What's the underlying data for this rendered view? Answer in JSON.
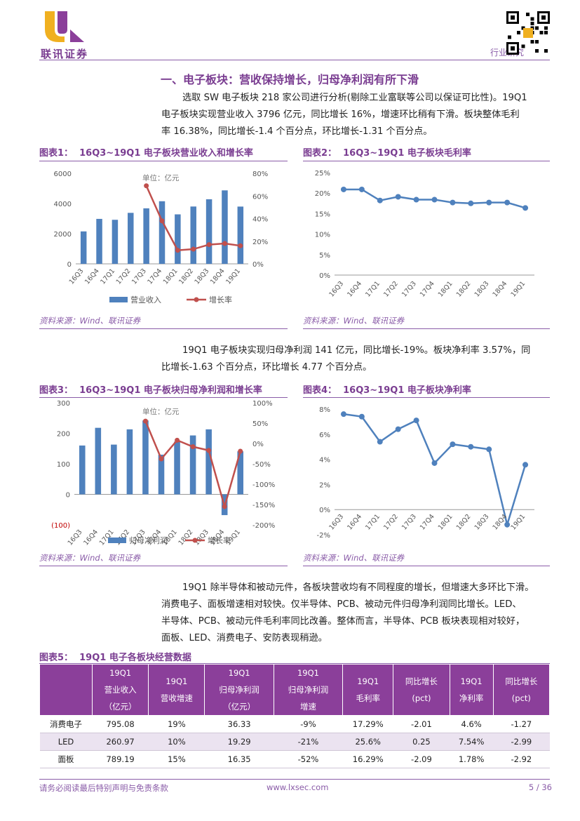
{
  "header": {
    "company": "联讯证券",
    "label": "行业研究"
  },
  "section": {
    "title": "一、电子板块：营收保持增长，归母净利润有所下滑"
  },
  "para1": {
    "l1": "选取 SW 电子板块 218 家公司进行分析(剔除工业富联等公司以保证可比性)。19Q1",
    "l2": "电子板块实现营业收入 3796 亿元，同比增长 16%，增速环比稍有下滑。板块整体毛利",
    "l3": "率 16.38%，同比增长-1.4 个百分点，环比增长-1.31 个百分点。"
  },
  "para2": {
    "l1": "19Q1 电子板块实现归母净利润 141 亿元，同比增长-19%。板块净利率 3.57%，同",
    "l2": "比增长-1.63 个百分点，环比增长 4.77 个百分点。"
  },
  "para3": {
    "l1": "19Q1 除半导体和被动元件，各板块营收均有不同程度的增长，但增速大多环比下滑。",
    "l2": "消费电子、面板增速相对较快。仅半导体、PCB、被动元件归母净利润同比增长。LED、",
    "l3": "半导体、PCB、被动元件毛利率同比改善。整体而言，半导体、PCB 板块表现相对较好，",
    "l4": "面板、LED、消费电子、安防表现稍逊。"
  },
  "figures": {
    "f1": {
      "label": "图表1：",
      "title": "16Q3~19Q1 电子板块营业收入和增长率",
      "source": "资料来源：Wind、联讯证券"
    },
    "f2": {
      "label": "图表2：",
      "title": "16Q3~19Q1 电子板块毛利率",
      "source": "资料来源：Wind、联讯证券"
    },
    "f3": {
      "label": "图表3：",
      "title": "16Q3~19Q1 电子板块归母净利润和增长率",
      "source": "资料来源：Wind、联讯证券"
    },
    "f4": {
      "label": "图表4：",
      "title": "16Q3~19Q1 电子板块净利率",
      "source": "资料来源：Wind、联讯证券"
    },
    "f5": {
      "label": "图表5：",
      "title": "19Q1 电子各板块经营数据"
    }
  },
  "chart_data": [
    {
      "type": "bar+line",
      "categories": [
        "16Q3",
        "16Q4",
        "17Q1",
        "17Q2",
        "17Q3",
        "17Q4",
        "18Q1",
        "18Q2",
        "18Q3",
        "18Q4",
        "19Q1"
      ],
      "unit_label": "单位：亿元",
      "series": [
        {
          "name": "营业收入",
          "values": [
            2150,
            2980,
            2920,
            3380,
            3680,
            4150,
            3280,
            3800,
            4280,
            4870,
            3796
          ]
        },
        {
          "name": "增长率",
          "values": [
            null,
            null,
            null,
            null,
            69,
            38,
            12,
            13,
            17,
            18,
            16
          ]
        }
      ],
      "ylim_left": [
        0,
        6000
      ],
      "yticks_left": [
        "0",
        "2000",
        "4000",
        "6000"
      ],
      "ylim_right": [
        0,
        80
      ],
      "yticks_right": [
        "0%",
        "20%",
        "40%",
        "60%",
        "80%"
      ]
    },
    {
      "type": "line",
      "categories": [
        "16Q3",
        "16Q4",
        "17Q1",
        "17Q2",
        "17Q3",
        "17Q4",
        "18Q1",
        "18Q2",
        "18Q3",
        "18Q4",
        "19Q1"
      ],
      "series": [
        {
          "name": "毛利率",
          "values": [
            20.9,
            20.9,
            18.2,
            19.1,
            18.4,
            18.4,
            17.7,
            17.5,
            17.7,
            17.7,
            16.38
          ]
        }
      ],
      "ylim": [
        0,
        25
      ],
      "yticks": [
        "0%",
        "5%",
        "10%",
        "15%",
        "20%",
        "25%"
      ]
    },
    {
      "type": "bar+line",
      "categories": [
        "16Q3",
        "16Q4",
        "17Q1",
        "17Q2",
        "17Q3",
        "17Q4",
        "18Q1",
        "18Q2",
        "18Q3",
        "18Q4",
        "19Q1"
      ],
      "unit_label": "单位：亿元",
      "series": [
        {
          "name": "归母净利润",
          "values": [
            160,
            218,
            163,
            213,
            242,
            130,
            173,
            193,
            213,
            -68,
            141
          ]
        },
        {
          "name": "增长率",
          "values": [
            null,
            null,
            null,
            null,
            55,
            -38,
            8,
            -8,
            -17,
            -155,
            -19
          ]
        }
      ],
      "ylim_left": [
        -100,
        300
      ],
      "yticks_left": [
        "(100)",
        "0",
        "100",
        "200",
        "300"
      ],
      "ylim_right": [
        -200,
        100
      ],
      "yticks_right": [
        "-200%",
        "-150%",
        "-100%",
        "-50%",
        "0%",
        "50%",
        "100%"
      ]
    },
    {
      "type": "line",
      "categories": [
        "16Q3",
        "16Q4",
        "17Q1",
        "17Q2",
        "17Q3",
        "17Q4",
        "18Q1",
        "18Q2",
        "18Q3",
        "18Q4",
        "19Q1"
      ],
      "series": [
        {
          "name": "净利率",
          "values": [
            7.6,
            7.4,
            5.4,
            6.4,
            7.1,
            3.7,
            5.2,
            5.0,
            4.8,
            -1.2,
            3.57
          ]
        }
      ],
      "ylim": [
        -2,
        8
      ],
      "yticks": [
        "-2%",
        "0%",
        "2%",
        "4%",
        "6%",
        "8%"
      ]
    }
  ],
  "table": {
    "headers": [
      [
        "",
        ""
      ],
      [
        "19Q1",
        "营业收入",
        "（亿元）"
      ],
      [
        "19Q1",
        "营收增速"
      ],
      [
        "19Q1",
        "归母净利润",
        "（亿元）"
      ],
      [
        "19Q1",
        "归母净利润",
        "增速"
      ],
      [
        "19Q1",
        "毛利率"
      ],
      [
        "同比增长",
        "(pct)"
      ],
      [
        "19Q1",
        "净利率"
      ],
      [
        "同比增长",
        "(pct)"
      ]
    ],
    "rows": [
      [
        "消费电子",
        "795.08",
        "19%",
        "36.33",
        "-9%",
        "17.29%",
        "-2.01",
        "4.6%",
        "-1.27"
      ],
      [
        "LED",
        "260.97",
        "10%",
        "19.29",
        "-21%",
        "25.6%",
        "0.25",
        "7.54%",
        "-2.99"
      ],
      [
        "面板",
        "789.19",
        "15%",
        "16.35",
        "-52%",
        "16.29%",
        "-2.09",
        "1.78%",
        "-2.92"
      ]
    ]
  },
  "footer": {
    "disclaimer": "请务必阅读最后特别声明与免责条款",
    "url": "www.lxsec.com",
    "page": "5 / 36"
  },
  "colors": {
    "purple": "#7a3d91",
    "bar": "#4f81bd",
    "line_red": "#c0504d",
    "line_blue": "#4f81bd"
  }
}
